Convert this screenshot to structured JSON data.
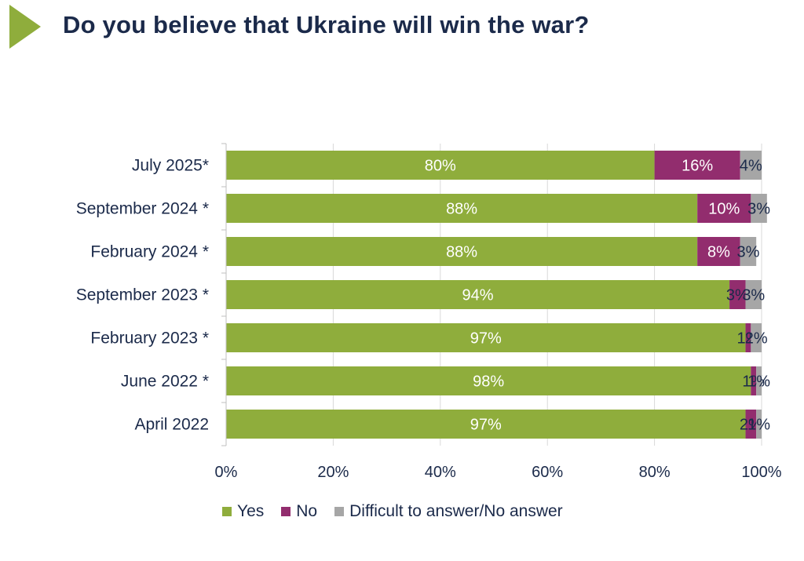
{
  "header": {
    "title": "Do you believe that Ukraine will win the war?",
    "accent_color": "#8fad3c"
  },
  "chart_data": {
    "type": "bar",
    "orientation": "horizontal",
    "stacked": true,
    "categories": [
      "July 2025*",
      "September 2024 *",
      "February 2024 *",
      "September 2023 *",
      "February 2023 *",
      "June 2022 *",
      "April 2022"
    ],
    "series": [
      {
        "name": "Yes",
        "color": "#8fad3c",
        "values": [
          80,
          88,
          88,
          94,
          97,
          98,
          97
        ],
        "labels": [
          "80%",
          "88%",
          "88%",
          "94%",
          "97%",
          "98%",
          "97%"
        ]
      },
      {
        "name": "No",
        "color": "#922d6e",
        "values": [
          16,
          10,
          8,
          3,
          1,
          1,
          2
        ],
        "labels": [
          "16%",
          "10%",
          "8%",
          "3%",
          "1%",
          "1%",
          "2%"
        ]
      },
      {
        "name": "Difficult to answer/No answer",
        "color": "#a6a6a6",
        "values": [
          4,
          3,
          3,
          3,
          2,
          1,
          1
        ],
        "labels": [
          "4%",
          "3%",
          "3%",
          "3%",
          "2%",
          "1%",
          "1%"
        ]
      }
    ],
    "xlim": [
      0,
      100
    ],
    "xticks": [
      "0%",
      "20%",
      "40%",
      "60%",
      "80%",
      "100%"
    ],
    "grid": true,
    "legend_position": "bottom"
  }
}
